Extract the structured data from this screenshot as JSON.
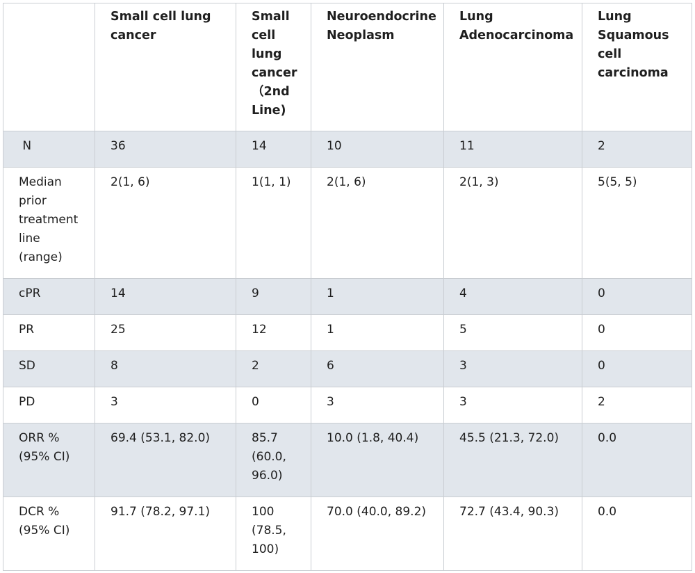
{
  "table": {
    "headers": [
      "",
      "Small cell lung cancer",
      "Small cell lung cancer （2nd Line)",
      "Neuroendocrine Neoplasm",
      "Lung Adenocarcinoma",
      "Lung Squamous cell carcinoma"
    ],
    "rows": [
      {
        "label": " N",
        "values": [
          "36",
          "14",
          "10",
          "11",
          "2"
        ]
      },
      {
        "label": "Median prior treatment line (range)",
        "values": [
          "2(1, 6)",
          "1(1, 1)",
          "2(1, 6)",
          "2(1, 3)",
          "5(5, 5)"
        ]
      },
      {
        "label": "cPR",
        "values": [
          "14",
          "9",
          "1",
          "4",
          "0"
        ]
      },
      {
        "label": "PR",
        "values": [
          "25",
          "12",
          "1",
          "5",
          "0"
        ]
      },
      {
        "label": "SD",
        "values": [
          "8",
          "2",
          "6",
          "3",
          "0"
        ]
      },
      {
        "label": "PD",
        "values": [
          "3",
          "0",
          "3",
          "3",
          "2"
        ]
      },
      {
        "label": "ORR % (95% CI)",
        "values": [
          "69.4 (53.1, 82.0)",
          "85.7 (60.0, 96.0)",
          "10.0 (1.8, 40.4)",
          "45.5 (21.3, 72.0)",
          "0.0"
        ]
      },
      {
        "label": "DCR % (95% CI)",
        "values": [
          "91.7 (78.2, 97.1)",
          "100 (78.5, 100)",
          "70.0 (40.0, 89.2)",
          "72.7 (43.4, 90.3)",
          "0.0"
        ]
      }
    ]
  },
  "colors": {
    "shaded_row": "#e1e6ec",
    "border": "#c9cdd2"
  }
}
